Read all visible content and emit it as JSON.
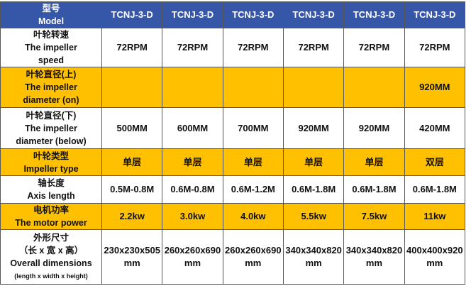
{
  "header": {
    "label": [
      "型号",
      "Model"
    ],
    "models": [
      "TCNJ-3-D",
      "TCNJ-3-D",
      "TCNJ-3-D",
      "TCNJ-3-D",
      "TCNJ-3-D",
      "TCNJ-3-D"
    ]
  },
  "table": {
    "rows": [
      {
        "label": [
          "叶轮转速",
          "The impeller",
          "speed"
        ],
        "values": [
          "72RPM",
          "72RPM",
          "72RPM",
          "72RPM",
          "72RPM",
          "72RPM"
        ]
      },
      {
        "label": [
          "叶轮直径(上)",
          "The impeller",
          "diameter (on)"
        ],
        "values": [
          null,
          null,
          null,
          null,
          null,
          "920MM"
        ]
      },
      {
        "label": [
          "叶轮直径(下)",
          "The impeller",
          "diameter (below)"
        ],
        "values": [
          "500MM",
          "600MM",
          "700MM",
          "920MM",
          "920MM",
          "420MM"
        ]
      },
      {
        "label": [
          "叶轮类型",
          "Impeller type"
        ],
        "values": [
          "单层",
          "单层",
          "单层",
          "单层",
          "单层",
          "双层"
        ]
      },
      {
        "label": [
          "轴长度",
          "Axis length"
        ],
        "values": [
          "0.5M-0.8M",
          "0.6M-0.8M",
          "0.6M-1.2M",
          "0.6M-1.8M",
          "0.6M-1.8M",
          "0.6M-1.8M"
        ]
      },
      {
        "label": [
          "电机功率",
          "The motor power"
        ],
        "values": [
          "2.2kw",
          "3.0kw",
          "4.0kw",
          "5.5kw",
          "7.5kw",
          "11kw"
        ]
      },
      {
        "label": [
          "外形尺寸",
          "（长 x 宽 x 高）",
          "Overall dimensions",
          "(length x width x height)"
        ],
        "values": [
          "230x230x505mm",
          "260x260x690mm",
          "260x260x690mm",
          "340x340x820mm",
          "340x340x820mm",
          "400x400x920mm"
        ]
      }
    ]
  }
}
